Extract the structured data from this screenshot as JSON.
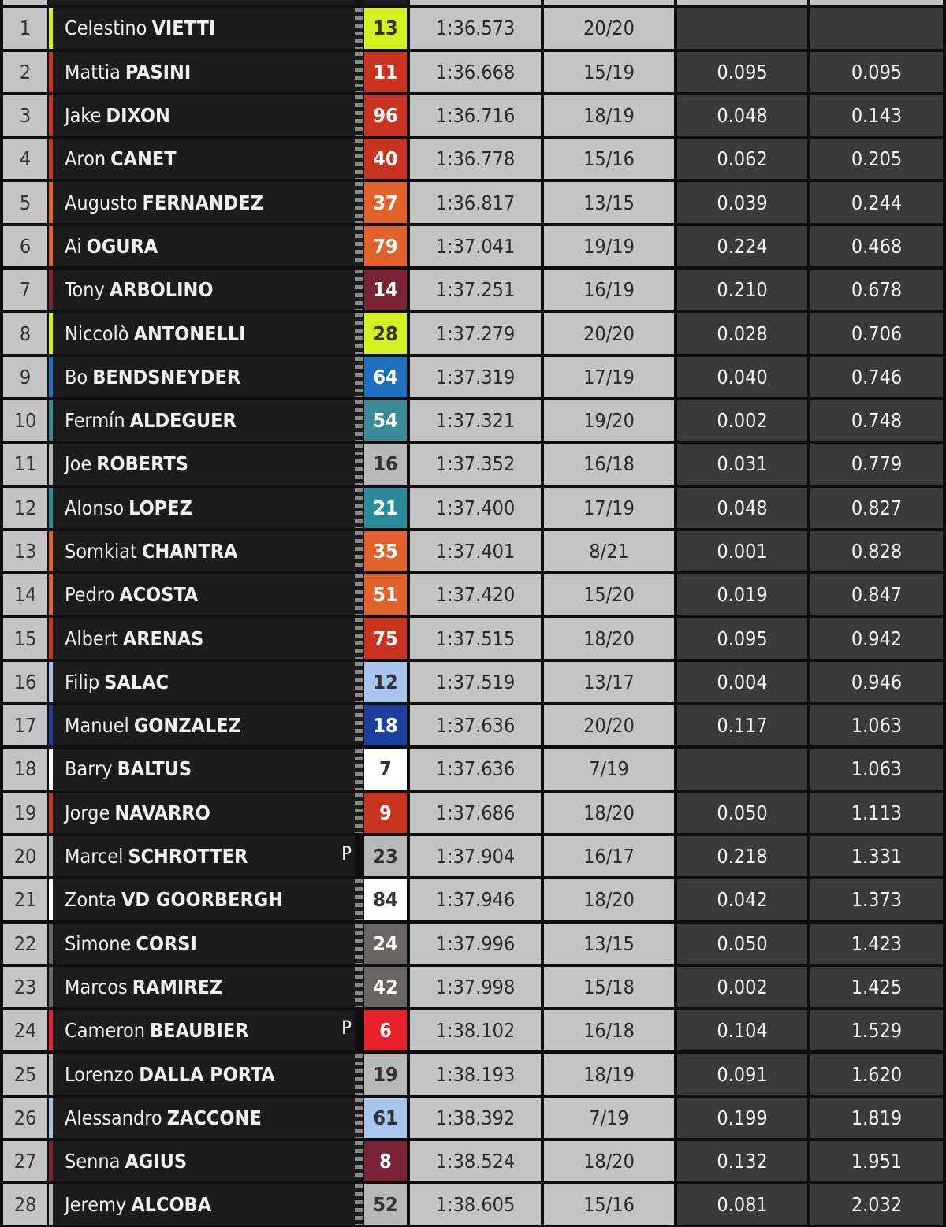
{
  "riders": [
    {
      "pos": "1",
      "first": "Celestino",
      "last": "VIETTI",
      "num": "13",
      "color": "#d4f01e",
      "text": "#333333",
      "time": "1:36.573",
      "laps": "20/20",
      "gap": "",
      "gap_first": ""
    },
    {
      "pos": "2",
      "first": "Mattia",
      "last": "PASINI",
      "num": "11",
      "color": "#c8321e",
      "text": "#ffffff",
      "time": "1:36.668",
      "laps": "15/19",
      "gap": "0.095",
      "gap_first": "0.095"
    },
    {
      "pos": "3",
      "first": "Jake",
      "last": "DIXON",
      "num": "96",
      "color": "#c8321e",
      "text": "#ffffff",
      "time": "1:36.716",
      "laps": "18/19",
      "gap": "0.048",
      "gap_first": "0.143"
    },
    {
      "pos": "4",
      "first": "Aron",
      "last": "CANET",
      "num": "40",
      "color": "#c8321e",
      "text": "#ffffff",
      "time": "1:36.778",
      "laps": "15/16",
      "gap": "0.062",
      "gap_first": "0.205"
    },
    {
      "pos": "5",
      "first": "Augusto",
      "last": "FERNANDEZ",
      "num": "37",
      "color": "#e0622a",
      "text": "#ffffff",
      "time": "1:36.817",
      "laps": "13/15",
      "gap": "0.039",
      "gap_first": "0.244"
    },
    {
      "pos": "6",
      "first": "Ai",
      "last": "OGURA",
      "num": "79",
      "color": "#e0622a",
      "text": "#ffffff",
      "time": "1:37.041",
      "laps": "19/19",
      "gap": "0.224",
      "gap_first": "0.468"
    },
    {
      "pos": "7",
      "first": "Tony",
      "last": "ARBOLINO",
      "num": "14",
      "color": "#7a2435",
      "text": "#ffffff",
      "time": "1:37.251",
      "laps": "16/19",
      "gap": "0.210",
      "gap_first": "0.678"
    },
    {
      "pos": "8",
      "first": "Niccolò",
      "last": "ANTONELLI",
      "num": "28",
      "color": "#d4f01e",
      "text": "#333333",
      "time": "1:37.279",
      "laps": "20/20",
      "gap": "0.028",
      "gap_first": "0.706"
    },
    {
      "pos": "9",
      "first": "Bo",
      "last": "BENDSNEYDER",
      "num": "64",
      "color": "#1f6fc0",
      "text": "#ffffff",
      "time": "1:37.319",
      "laps": "17/19",
      "gap": "0.040",
      "gap_first": "0.746"
    },
    {
      "pos": "10",
      "first": "Fermín",
      "last": "ALDEGUER",
      "num": "54",
      "color": "#3a8a9a",
      "text": "#ffffff",
      "time": "1:37.321",
      "laps": "19/20",
      "gap": "0.002",
      "gap_first": "0.748"
    },
    {
      "pos": "11",
      "first": "Joe",
      "last": "ROBERTS",
      "num": "16",
      "color": "#b8b8b8",
      "text": "#333333",
      "time": "1:37.352",
      "laps": "16/18",
      "gap": "0.031",
      "gap_first": "0.779"
    },
    {
      "pos": "12",
      "first": "Alonso",
      "last": "LOPEZ",
      "num": "21",
      "color": "#2b8b9b",
      "text": "#ffffff",
      "time": "1:37.400",
      "laps": "17/19",
      "gap": "0.048",
      "gap_first": "0.827"
    },
    {
      "pos": "13",
      "first": "Somkiat",
      "last": "CHANTRA",
      "num": "35",
      "color": "#e0622a",
      "text": "#ffffff",
      "time": "1:37.401",
      "laps": "8/21",
      "gap": "0.001",
      "gap_first": "0.828"
    },
    {
      "pos": "14",
      "first": "Pedro",
      "last": "ACOSTA",
      "num": "51",
      "color": "#e0622a",
      "text": "#ffffff",
      "time": "1:37.420",
      "laps": "15/20",
      "gap": "0.019",
      "gap_first": "0.847"
    },
    {
      "pos": "15",
      "first": "Albert",
      "last": "ARENAS",
      "num": "75",
      "color": "#c8321e",
      "text": "#ffffff",
      "time": "1:37.515",
      "laps": "18/20",
      "gap": "0.095",
      "gap_first": "0.942"
    },
    {
      "pos": "16",
      "first": "Filip",
      "last": "SALAC",
      "num": "12",
      "color": "#a8c4ec",
      "text": "#333333",
      "time": "1:37.519",
      "laps": "13/17",
      "gap": "0.004",
      "gap_first": "0.946"
    },
    {
      "pos": "17",
      "first": "Manuel",
      "last": "GONZALEZ",
      "num": "18",
      "color": "#1c3fa0",
      "text": "#ffffff",
      "time": "1:37.636",
      "laps": "20/20",
      "gap": "0.117",
      "gap_first": "1.063"
    },
    {
      "pos": "18",
      "first": "Barry",
      "last": "BALTUS",
      "num": "7",
      "color": "#ffffff",
      "text": "#333333",
      "time": "1:37.636",
      "laps": "7/19",
      "gap": "",
      "gap_first": "1.063"
    },
    {
      "pos": "19",
      "first": "Jorge",
      "last": "NAVARRO",
      "num": "9",
      "color": "#c8321e",
      "text": "#ffffff",
      "time": "1:37.686",
      "laps": "18/20",
      "gap": "0.050",
      "gap_first": "1.113"
    },
    {
      "pos": "20",
      "first": "Marcel",
      "last": "SCHROTTER",
      "num": "23",
      "color": "#b8b8b8",
      "text": "#333333",
      "time": "1:37.904",
      "laps": "16/17",
      "gap": "0.218",
      "gap_first": "1.331",
      "pit": "P"
    },
    {
      "pos": "21",
      "first": "Zonta",
      "last": "VD GOORBERGH",
      "num": "84",
      "color": "#ffffff",
      "text": "#333333",
      "time": "1:37.946",
      "laps": "18/20",
      "gap": "0.042",
      "gap_first": "1.373"
    },
    {
      "pos": "22",
      "first": "Simone",
      "last": "CORSI",
      "num": "24",
      "color": "#6b6464",
      "text": "#ffffff",
      "time": "1:37.996",
      "laps": "13/15",
      "gap": "0.050",
      "gap_first": "1.423"
    },
    {
      "pos": "23",
      "first": "Marcos",
      "last": "RAMIREZ",
      "num": "42",
      "color": "#6b6464",
      "text": "#ffffff",
      "time": "1:37.998",
      "laps": "15/18",
      "gap": "0.002",
      "gap_first": "1.425"
    },
    {
      "pos": "24",
      "first": "Cameron",
      "last": "BEAUBIER",
      "num": "6",
      "color": "#e8202a",
      "text": "#ffffff",
      "time": "1:38.102",
      "laps": "16/18",
      "gap": "0.104",
      "gap_first": "1.529",
      "pit": "P"
    },
    {
      "pos": "25",
      "first": "Lorenzo",
      "last": "DALLA PORTA",
      "num": "19",
      "color": "#b8b8b8",
      "text": "#333333",
      "time": "1:38.193",
      "laps": "18/19",
      "gap": "0.091",
      "gap_first": "1.620"
    },
    {
      "pos": "26",
      "first": "Alessandro",
      "last": "ZACCONE",
      "num": "61",
      "color": "#a8c4ec",
      "text": "#333333",
      "time": "1:38.392",
      "laps": "7/19",
      "gap": "0.199",
      "gap_first": "1.819"
    },
    {
      "pos": "27",
      "first": "Senna",
      "last": "AGIUS",
      "num": "8",
      "color": "#7a2435",
      "text": "#ffffff",
      "time": "1:38.524",
      "laps": "18/20",
      "gap": "0.132",
      "gap_first": "1.951"
    },
    {
      "pos": "28",
      "first": "Jeremy",
      "last": "ALCOBA",
      "num": "52",
      "color": "#b8b8b8",
      "text": "#333333",
      "time": "1:38.605",
      "laps": "15/16",
      "gap": "0.081",
      "gap_first": "2.032"
    }
  ]
}
